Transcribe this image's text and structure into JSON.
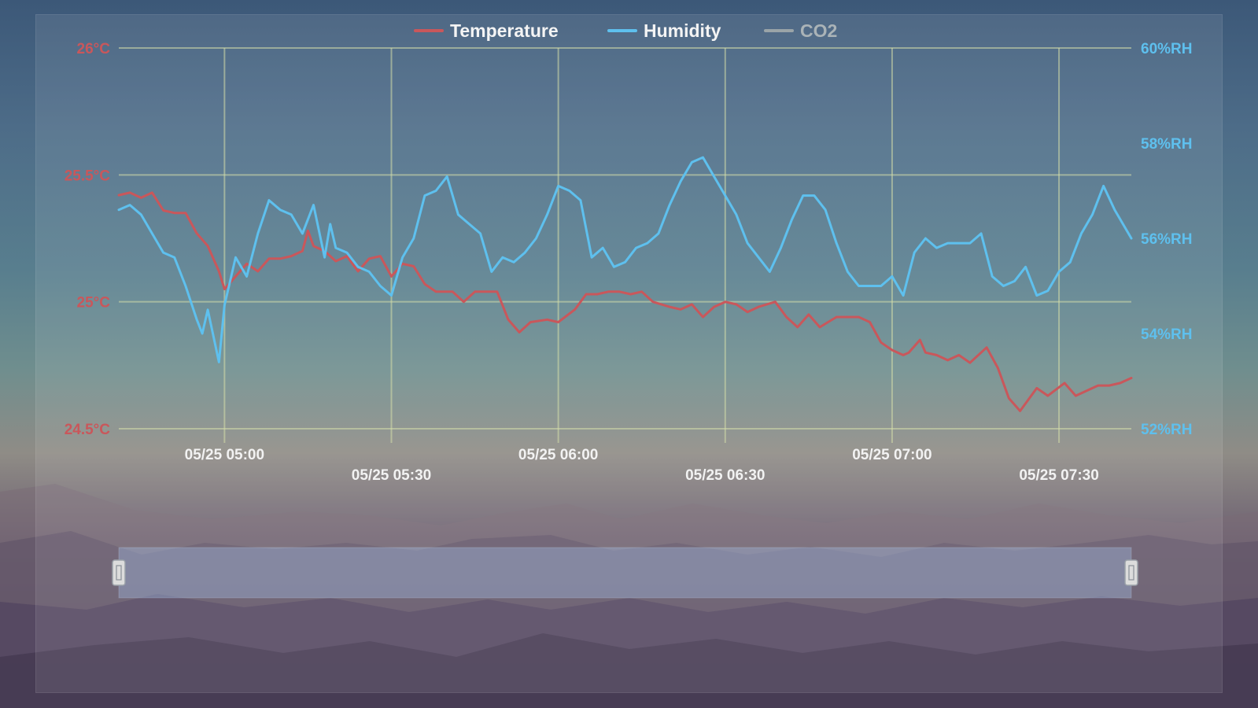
{
  "chart_data": {
    "type": "line",
    "title": "",
    "legend": {
      "placement": "top-center",
      "items": [
        {
          "label": "Temperature",
          "color": "#c9575b",
          "active": true
        },
        {
          "label": "Humidity",
          "color": "#5ec0ee",
          "active": true
        },
        {
          "label": "CO2",
          "color": "#9aa4a8",
          "active": false
        }
      ]
    },
    "x_axis": {
      "type": "time",
      "range": [
        "05/25 04:41",
        "05/25 07:43"
      ],
      "ticks": [
        "05/25 05:00",
        "05/25 05:30",
        "05/25 06:00",
        "05/25 06:30",
        "05/25 07:00",
        "05/25 07:30"
      ],
      "grid": true
    },
    "y_axis_left": {
      "unit": "°C",
      "range": [
        24.5,
        26
      ],
      "ticks": [
        "24.5°C",
        "25°C",
        "25.5°C",
        "26°C"
      ],
      "color": "#c9575b",
      "grid": true
    },
    "y_axis_right": {
      "unit": "%RH",
      "range": [
        52,
        60
      ],
      "ticks": [
        "52%RH",
        "54%RH",
        "56%RH",
        "58%RH",
        "60%RH"
      ],
      "color": "#5ec0ee"
    },
    "series": [
      {
        "name": "Temperature",
        "axis": "left",
        "color": "#c9575b",
        "points": [
          [
            "05/25 04:41",
            25.42
          ],
          [
            "05/25 04:43",
            25.43
          ],
          [
            "05/25 04:45",
            25.41
          ],
          [
            "05/25 04:47",
            25.43
          ],
          [
            "05/25 04:49",
            25.36
          ],
          [
            "05/25 04:51",
            25.35
          ],
          [
            "05/25 04:53",
            25.35
          ],
          [
            "05/25 04:55",
            25.27
          ],
          [
            "05/25 04:57",
            25.22
          ],
          [
            "05/25 04:59",
            25.12
          ],
          [
            "05/25 05:00",
            25.05
          ],
          [
            "05/25 05:02",
            25.1
          ],
          [
            "05/25 05:04",
            25.15
          ],
          [
            "05/25 05:06",
            25.12
          ],
          [
            "05/25 05:08",
            25.17
          ],
          [
            "05/25 05:10",
            25.17
          ],
          [
            "05/25 05:12",
            25.18
          ],
          [
            "05/25 05:14",
            25.2
          ],
          [
            "05/25 05:15",
            25.28
          ],
          [
            "05/25 05:16",
            25.22
          ],
          [
            "05/25 05:18",
            25.2
          ],
          [
            "05/25 05:20",
            25.16
          ],
          [
            "05/25 05:22",
            25.18
          ],
          [
            "05/25 05:24",
            25.12
          ],
          [
            "05/25 05:26",
            25.17
          ],
          [
            "05/25 05:28",
            25.18
          ],
          [
            "05/25 05:30",
            25.1
          ],
          [
            "05/25 05:32",
            25.15
          ],
          [
            "05/25 05:34",
            25.14
          ],
          [
            "05/25 05:36",
            25.07
          ],
          [
            "05/25 05:38",
            25.04
          ],
          [
            "05/25 05:41",
            25.04
          ],
          [
            "05/25 05:43",
            25.0
          ],
          [
            "05/25 05:45",
            25.04
          ],
          [
            "05/25 05:49",
            25.04
          ],
          [
            "05/25 05:51",
            24.93
          ],
          [
            "05/25 05:53",
            24.88
          ],
          [
            "05/25 05:55",
            24.92
          ],
          [
            "05/25 05:58",
            24.93
          ],
          [
            "05/25 06:00",
            24.92
          ],
          [
            "05/25 06:03",
            24.97
          ],
          [
            "05/25 06:05",
            25.03
          ],
          [
            "05/25 06:07",
            25.03
          ],
          [
            "05/25 06:09",
            25.04
          ],
          [
            "05/25 06:11",
            25.04
          ],
          [
            "05/25 06:13",
            25.03
          ],
          [
            "05/25 06:15",
            25.04
          ],
          [
            "05/25 06:17",
            25.0
          ],
          [
            "05/25 06:20",
            24.98
          ],
          [
            "05/25 06:22",
            24.97
          ],
          [
            "05/25 06:24",
            24.99
          ],
          [
            "05/25 06:26",
            24.94
          ],
          [
            "05/25 06:28",
            24.98
          ],
          [
            "05/25 06:30",
            25.0
          ],
          [
            "05/25 06:32",
            24.99
          ],
          [
            "05/25 06:34",
            24.96
          ],
          [
            "05/25 06:36",
            24.98
          ],
          [
            "05/25 06:39",
            25.0
          ],
          [
            "05/25 06:41",
            24.94
          ],
          [
            "05/25 06:43",
            24.9
          ],
          [
            "05/25 06:45",
            24.95
          ],
          [
            "05/25 06:47",
            24.9
          ],
          [
            "05/25 06:50",
            24.94
          ],
          [
            "05/25 06:52",
            24.94
          ],
          [
            "05/25 06:54",
            24.94
          ],
          [
            "05/25 06:56",
            24.92
          ],
          [
            "05/25 06:58",
            24.84
          ],
          [
            "05/25 07:00",
            24.81
          ],
          [
            "05/25 07:02",
            24.79
          ],
          [
            "05/25 07:03",
            24.8
          ],
          [
            "05/25 07:05",
            24.85
          ],
          [
            "05/25 07:06",
            24.8
          ],
          [
            "05/25 07:08",
            24.79
          ],
          [
            "05/25 07:10",
            24.77
          ],
          [
            "05/25 07:12",
            24.79
          ],
          [
            "05/25 07:14",
            24.76
          ],
          [
            "05/25 07:17",
            24.82
          ],
          [
            "05/25 07:19",
            24.74
          ],
          [
            "05/25 07:21",
            24.62
          ],
          [
            "05/25 07:23",
            24.57
          ],
          [
            "05/25 07:26",
            24.66
          ],
          [
            "05/25 07:28",
            24.63
          ],
          [
            "05/25 07:31",
            24.68
          ],
          [
            "05/25 07:33",
            24.63
          ],
          [
            "05/25 07:35",
            24.65
          ],
          [
            "05/25 07:37",
            24.67
          ],
          [
            "05/25 07:39",
            24.67
          ],
          [
            "05/25 07:41",
            24.68
          ],
          [
            "05/25 07:43",
            24.7
          ]
        ]
      },
      {
        "name": "Humidity",
        "axis": "right",
        "color": "#5ec0ee",
        "points": [
          [
            "05/25 04:41",
            56.6
          ],
          [
            "05/25 04:43",
            56.7
          ],
          [
            "05/25 04:45",
            56.5
          ],
          [
            "05/25 04:47",
            56.1
          ],
          [
            "05/25 04:49",
            55.7
          ],
          [
            "05/25 04:51",
            55.6
          ],
          [
            "05/25 04:53",
            55.0
          ],
          [
            "05/25 04:55",
            54.3
          ],
          [
            "05/25 04:56",
            54.0
          ],
          [
            "05/25 04:57",
            54.5
          ],
          [
            "05/25 04:59",
            53.4
          ],
          [
            "05/25 05:00",
            54.6
          ],
          [
            "05/25 05:02",
            55.6
          ],
          [
            "05/25 05:04",
            55.2
          ],
          [
            "05/25 05:06",
            56.1
          ],
          [
            "05/25 05:08",
            56.8
          ],
          [
            "05/25 05:10",
            56.6
          ],
          [
            "05/25 05:12",
            56.5
          ],
          [
            "05/25 05:14",
            56.1
          ],
          [
            "05/25 05:16",
            56.7
          ],
          [
            "05/25 05:18",
            55.6
          ],
          [
            "05/25 05:19",
            56.3
          ],
          [
            "05/25 05:20",
            55.8
          ],
          [
            "05/25 05:22",
            55.7
          ],
          [
            "05/25 05:24",
            55.4
          ],
          [
            "05/25 05:26",
            55.3
          ],
          [
            "05/25 05:28",
            55.0
          ],
          [
            "05/25 05:30",
            54.8
          ],
          [
            "05/25 05:32",
            55.6
          ],
          [
            "05/25 05:34",
            56.0
          ],
          [
            "05/25 05:36",
            56.9
          ],
          [
            "05/25 05:38",
            57.0
          ],
          [
            "05/25 05:40",
            57.3
          ],
          [
            "05/25 05:42",
            56.5
          ],
          [
            "05/25 05:44",
            56.3
          ],
          [
            "05/25 05:46",
            56.1
          ],
          [
            "05/25 05:48",
            55.3
          ],
          [
            "05/25 05:50",
            55.6
          ],
          [
            "05/25 05:52",
            55.5
          ],
          [
            "05/25 05:54",
            55.7
          ],
          [
            "05/25 05:56",
            56.0
          ],
          [
            "05/25 05:58",
            56.5
          ],
          [
            "05/25 06:00",
            57.1
          ],
          [
            "05/25 06:02",
            57.0
          ],
          [
            "05/25 06:04",
            56.8
          ],
          [
            "05/25 06:06",
            55.6
          ],
          [
            "05/25 06:08",
            55.8
          ],
          [
            "05/25 06:10",
            55.4
          ],
          [
            "05/25 06:12",
            55.5
          ],
          [
            "05/25 06:14",
            55.8
          ],
          [
            "05/25 06:16",
            55.9
          ],
          [
            "05/25 06:18",
            56.1
          ],
          [
            "05/25 06:20",
            56.7
          ],
          [
            "05/25 06:22",
            57.2
          ],
          [
            "05/25 06:24",
            57.6
          ],
          [
            "05/25 06:26",
            57.7
          ],
          [
            "05/25 06:28",
            57.3
          ],
          [
            "05/25 06:30",
            56.9
          ],
          [
            "05/25 06:32",
            56.5
          ],
          [
            "05/25 06:34",
            55.9
          ],
          [
            "05/25 06:36",
            55.6
          ],
          [
            "05/25 06:38",
            55.3
          ],
          [
            "05/25 06:40",
            55.8
          ],
          [
            "05/25 06:42",
            56.4
          ],
          [
            "05/25 06:44",
            56.9
          ],
          [
            "05/25 06:46",
            56.9
          ],
          [
            "05/25 06:48",
            56.6
          ],
          [
            "05/25 06:50",
            55.9
          ],
          [
            "05/25 06:52",
            55.3
          ],
          [
            "05/25 06:54",
            55.0
          ],
          [
            "05/25 06:56",
            55.0
          ],
          [
            "05/25 06:58",
            55.0
          ],
          [
            "05/25 07:00",
            55.2
          ],
          [
            "05/25 07:02",
            54.8
          ],
          [
            "05/25 07:04",
            55.7
          ],
          [
            "05/25 07:06",
            56.0
          ],
          [
            "05/25 07:08",
            55.8
          ],
          [
            "05/25 07:10",
            55.9
          ],
          [
            "05/25 07:12",
            55.9
          ],
          [
            "05/25 07:14",
            55.9
          ],
          [
            "05/25 07:16",
            56.1
          ],
          [
            "05/25 07:18",
            55.2
          ],
          [
            "05/25 07:20",
            55.0
          ],
          [
            "05/25 07:22",
            55.1
          ],
          [
            "05/25 07:24",
            55.4
          ],
          [
            "05/25 07:26",
            54.8
          ],
          [
            "05/25 07:28",
            54.9
          ],
          [
            "05/25 07:30",
            55.3
          ],
          [
            "05/25 07:32",
            55.5
          ],
          [
            "05/25 07:34",
            56.1
          ],
          [
            "05/25 07:36",
            56.5
          ],
          [
            "05/25 07:38",
            57.1
          ],
          [
            "05/25 07:40",
            56.6
          ],
          [
            "05/25 07:43",
            56.0
          ]
        ]
      },
      {
        "name": "CO2",
        "color": "#9aa4a8",
        "hidden": true,
        "points": []
      }
    ],
    "data_zoom": {
      "start": 0,
      "end": 100
    }
  }
}
